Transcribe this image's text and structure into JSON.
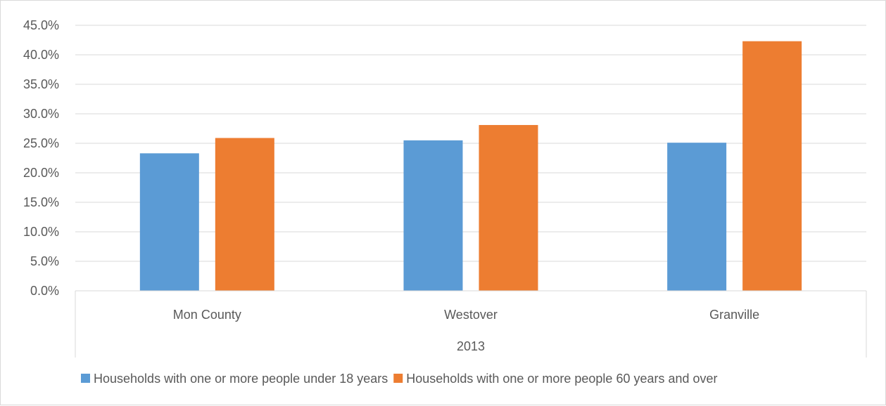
{
  "chart_data": {
    "type": "bar",
    "categories": [
      "Mon County",
      "Westover",
      "Granville"
    ],
    "group_label": "2013",
    "series": [
      {
        "name": "Households with one or more people under 18 years",
        "color": "#5b9bd5",
        "values": [
          23.3,
          25.5,
          25.1
        ]
      },
      {
        "name": "Households with one or more people 60 years and over",
        "color": "#ed7d31",
        "values": [
          25.9,
          28.1,
          42.3
        ]
      }
    ],
    "ylim": [
      0,
      45
    ],
    "y_ticks": [
      "0.0%",
      "5.0%",
      "10.0%",
      "15.0%",
      "20.0%",
      "25.0%",
      "30.0%",
      "35.0%",
      "40.0%",
      "45.0%"
    ],
    "y_tick_values": [
      0,
      5,
      10,
      15,
      20,
      25,
      30,
      35,
      40,
      45
    ],
    "grid": true,
    "legend_position": "bottom"
  }
}
